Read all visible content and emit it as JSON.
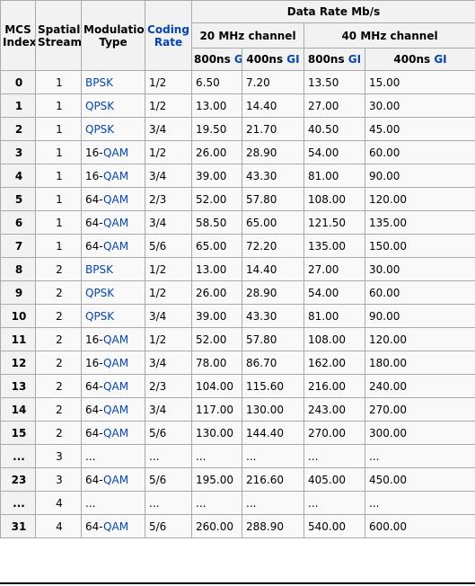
{
  "header": {
    "mcs_index": "MCS\nIndex",
    "spatial_streams": "Spatial\nStreams",
    "modulation_type": "Modulation\nType",
    "coding_rate": "Coding\nRate",
    "data_rate": "Data Rate Mb/s",
    "ch20": "20 MHz channel",
    "ch40": "40 MHz channel",
    "gi_cols": [
      {
        "prefix": "800ns ",
        "gi": "GI"
      },
      {
        "prefix": "400ns ",
        "gi": "GI"
      },
      {
        "prefix": "800ns ",
        "gi": "GI"
      },
      {
        "prefix": "400ns ",
        "gi": "GI"
      }
    ]
  },
  "rows": [
    {
      "idx": "0",
      "ss": "1",
      "mod_prefix": "",
      "mod_link": "BPSK",
      "rate": "1/2",
      "c1": "6.50",
      "c2": "7.20",
      "c3": "13.50",
      "c4": "15.00"
    },
    {
      "idx": "1",
      "ss": "1",
      "mod_prefix": "",
      "mod_link": "QPSK",
      "rate": "1/2",
      "c1": "13.00",
      "c2": "14.40",
      "c3": "27.00",
      "c4": "30.00"
    },
    {
      "idx": "2",
      "ss": "1",
      "mod_prefix": "",
      "mod_link": "QPSK",
      "rate": "3/4",
      "c1": "19.50",
      "c2": "21.70",
      "c3": "40.50",
      "c4": "45.00"
    },
    {
      "idx": "3",
      "ss": "1",
      "mod_prefix": "16-",
      "mod_link": "QAM",
      "rate": "1/2",
      "c1": "26.00",
      "c2": "28.90",
      "c3": "54.00",
      "c4": "60.00"
    },
    {
      "idx": "4",
      "ss": "1",
      "mod_prefix": "16-",
      "mod_link": "QAM",
      "rate": "3/4",
      "c1": "39.00",
      "c2": "43.30",
      "c3": "81.00",
      "c4": "90.00"
    },
    {
      "idx": "5",
      "ss": "1",
      "mod_prefix": "64-",
      "mod_link": "QAM",
      "rate": "2/3",
      "c1": "52.00",
      "c2": "57.80",
      "c3": "108.00",
      "c4": "120.00"
    },
    {
      "idx": "6",
      "ss": "1",
      "mod_prefix": "64-",
      "mod_link": "QAM",
      "rate": "3/4",
      "c1": "58.50",
      "c2": "65.00",
      "c3": "121.50",
      "c4": "135.00"
    },
    {
      "idx": "7",
      "ss": "1",
      "mod_prefix": "64-",
      "mod_link": "QAM",
      "rate": "5/6",
      "c1": "65.00",
      "c2": "72.20",
      "c3": "135.00",
      "c4": "150.00"
    },
    {
      "idx": "8",
      "ss": "2",
      "mod_prefix": "",
      "mod_link": "BPSK",
      "rate": "1/2",
      "c1": "13.00",
      "c2": "14.40",
      "c3": "27.00",
      "c4": "30.00"
    },
    {
      "idx": "9",
      "ss": "2",
      "mod_prefix": "",
      "mod_link": "QPSK",
      "rate": "1/2",
      "c1": "26.00",
      "c2": "28.90",
      "c3": "54.00",
      "c4": "60.00"
    },
    {
      "idx": "10",
      "ss": "2",
      "mod_prefix": "",
      "mod_link": "QPSK",
      "rate": "3/4",
      "c1": "39.00",
      "c2": "43.30",
      "c3": "81.00",
      "c4": "90.00"
    },
    {
      "idx": "11",
      "ss": "2",
      "mod_prefix": "16-",
      "mod_link": "QAM",
      "rate": "1/2",
      "c1": "52.00",
      "c2": "57.80",
      "c3": "108.00",
      "c4": "120.00"
    },
    {
      "idx": "12",
      "ss": "2",
      "mod_prefix": "16-",
      "mod_link": "QAM",
      "rate": "3/4",
      "c1": "78.00",
      "c2": "86.70",
      "c3": "162.00",
      "c4": "180.00"
    },
    {
      "idx": "13",
      "ss": "2",
      "mod_prefix": "64-",
      "mod_link": "QAM",
      "rate": "2/3",
      "c1": "104.00",
      "c2": "115.60",
      "c3": "216.00",
      "c4": "240.00"
    },
    {
      "idx": "14",
      "ss": "2",
      "mod_prefix": "64-",
      "mod_link": "QAM",
      "rate": "3/4",
      "c1": "117.00",
      "c2": "130.00",
      "c3": "243.00",
      "c4": "270.00"
    },
    {
      "idx": "15",
      "ss": "2",
      "mod_prefix": "64-",
      "mod_link": "QAM",
      "rate": "5/6",
      "c1": "130.00",
      "c2": "144.40",
      "c3": "270.00",
      "c4": "300.00"
    },
    {
      "idx": "...",
      "ss": "3",
      "mod_prefix": "...",
      "mod_link": "",
      "rate": "...",
      "c1": "...",
      "c2": "...",
      "c3": "...",
      "c4": "..."
    },
    {
      "idx": "23",
      "ss": "3",
      "mod_prefix": "64-",
      "mod_link": "QAM",
      "rate": "5/6",
      "c1": "195.00",
      "c2": "216.60",
      "c3": "405.00",
      "c4": "450.00"
    },
    {
      "idx": "...",
      "ss": "4",
      "mod_prefix": "...",
      "mod_link": "",
      "rate": "...",
      "c1": "...",
      "c2": "...",
      "c3": "...",
      "c4": "..."
    },
    {
      "idx": "31",
      "ss": "4",
      "mod_prefix": "64-",
      "mod_link": "QAM",
      "rate": "5/6",
      "c1": "260.00",
      "c2": "288.90",
      "c3": "540.00",
      "c4": "600.00"
    }
  ],
  "colors": {
    "link": "#0645ad",
    "header_bg": "#f2f2f2",
    "cell_bg": "#f9f9f9",
    "border": "#aaaaaa"
  }
}
